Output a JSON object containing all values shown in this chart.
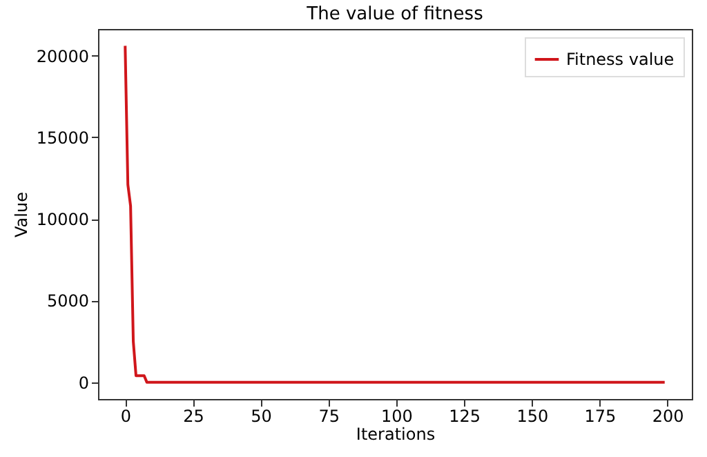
{
  "chart_data": {
    "type": "line",
    "title": "The value of fitness",
    "xlabel": "Iterations",
    "ylabel": "Value",
    "series": [
      {
        "name": "Fitness value",
        "color": "#d0161b",
        "x": [
          0,
          1,
          2,
          3,
          4,
          5,
          6,
          7,
          8,
          199
        ],
        "values": [
          20600,
          12100,
          10800,
          2500,
          400,
          400,
          400,
          400,
          0,
          0
        ]
      }
    ],
    "xlim": [
      -10,
      209
    ],
    "xticks": [
      0,
      25,
      50,
      75,
      100,
      125,
      150,
      175,
      200
    ],
    "ylim": [
      -1030,
      21630
    ],
    "yticks": [
      0,
      5000,
      10000,
      15000,
      20000
    ],
    "legend": "top right",
    "grid": false,
    "line_style": "solid",
    "marker": "none"
  }
}
